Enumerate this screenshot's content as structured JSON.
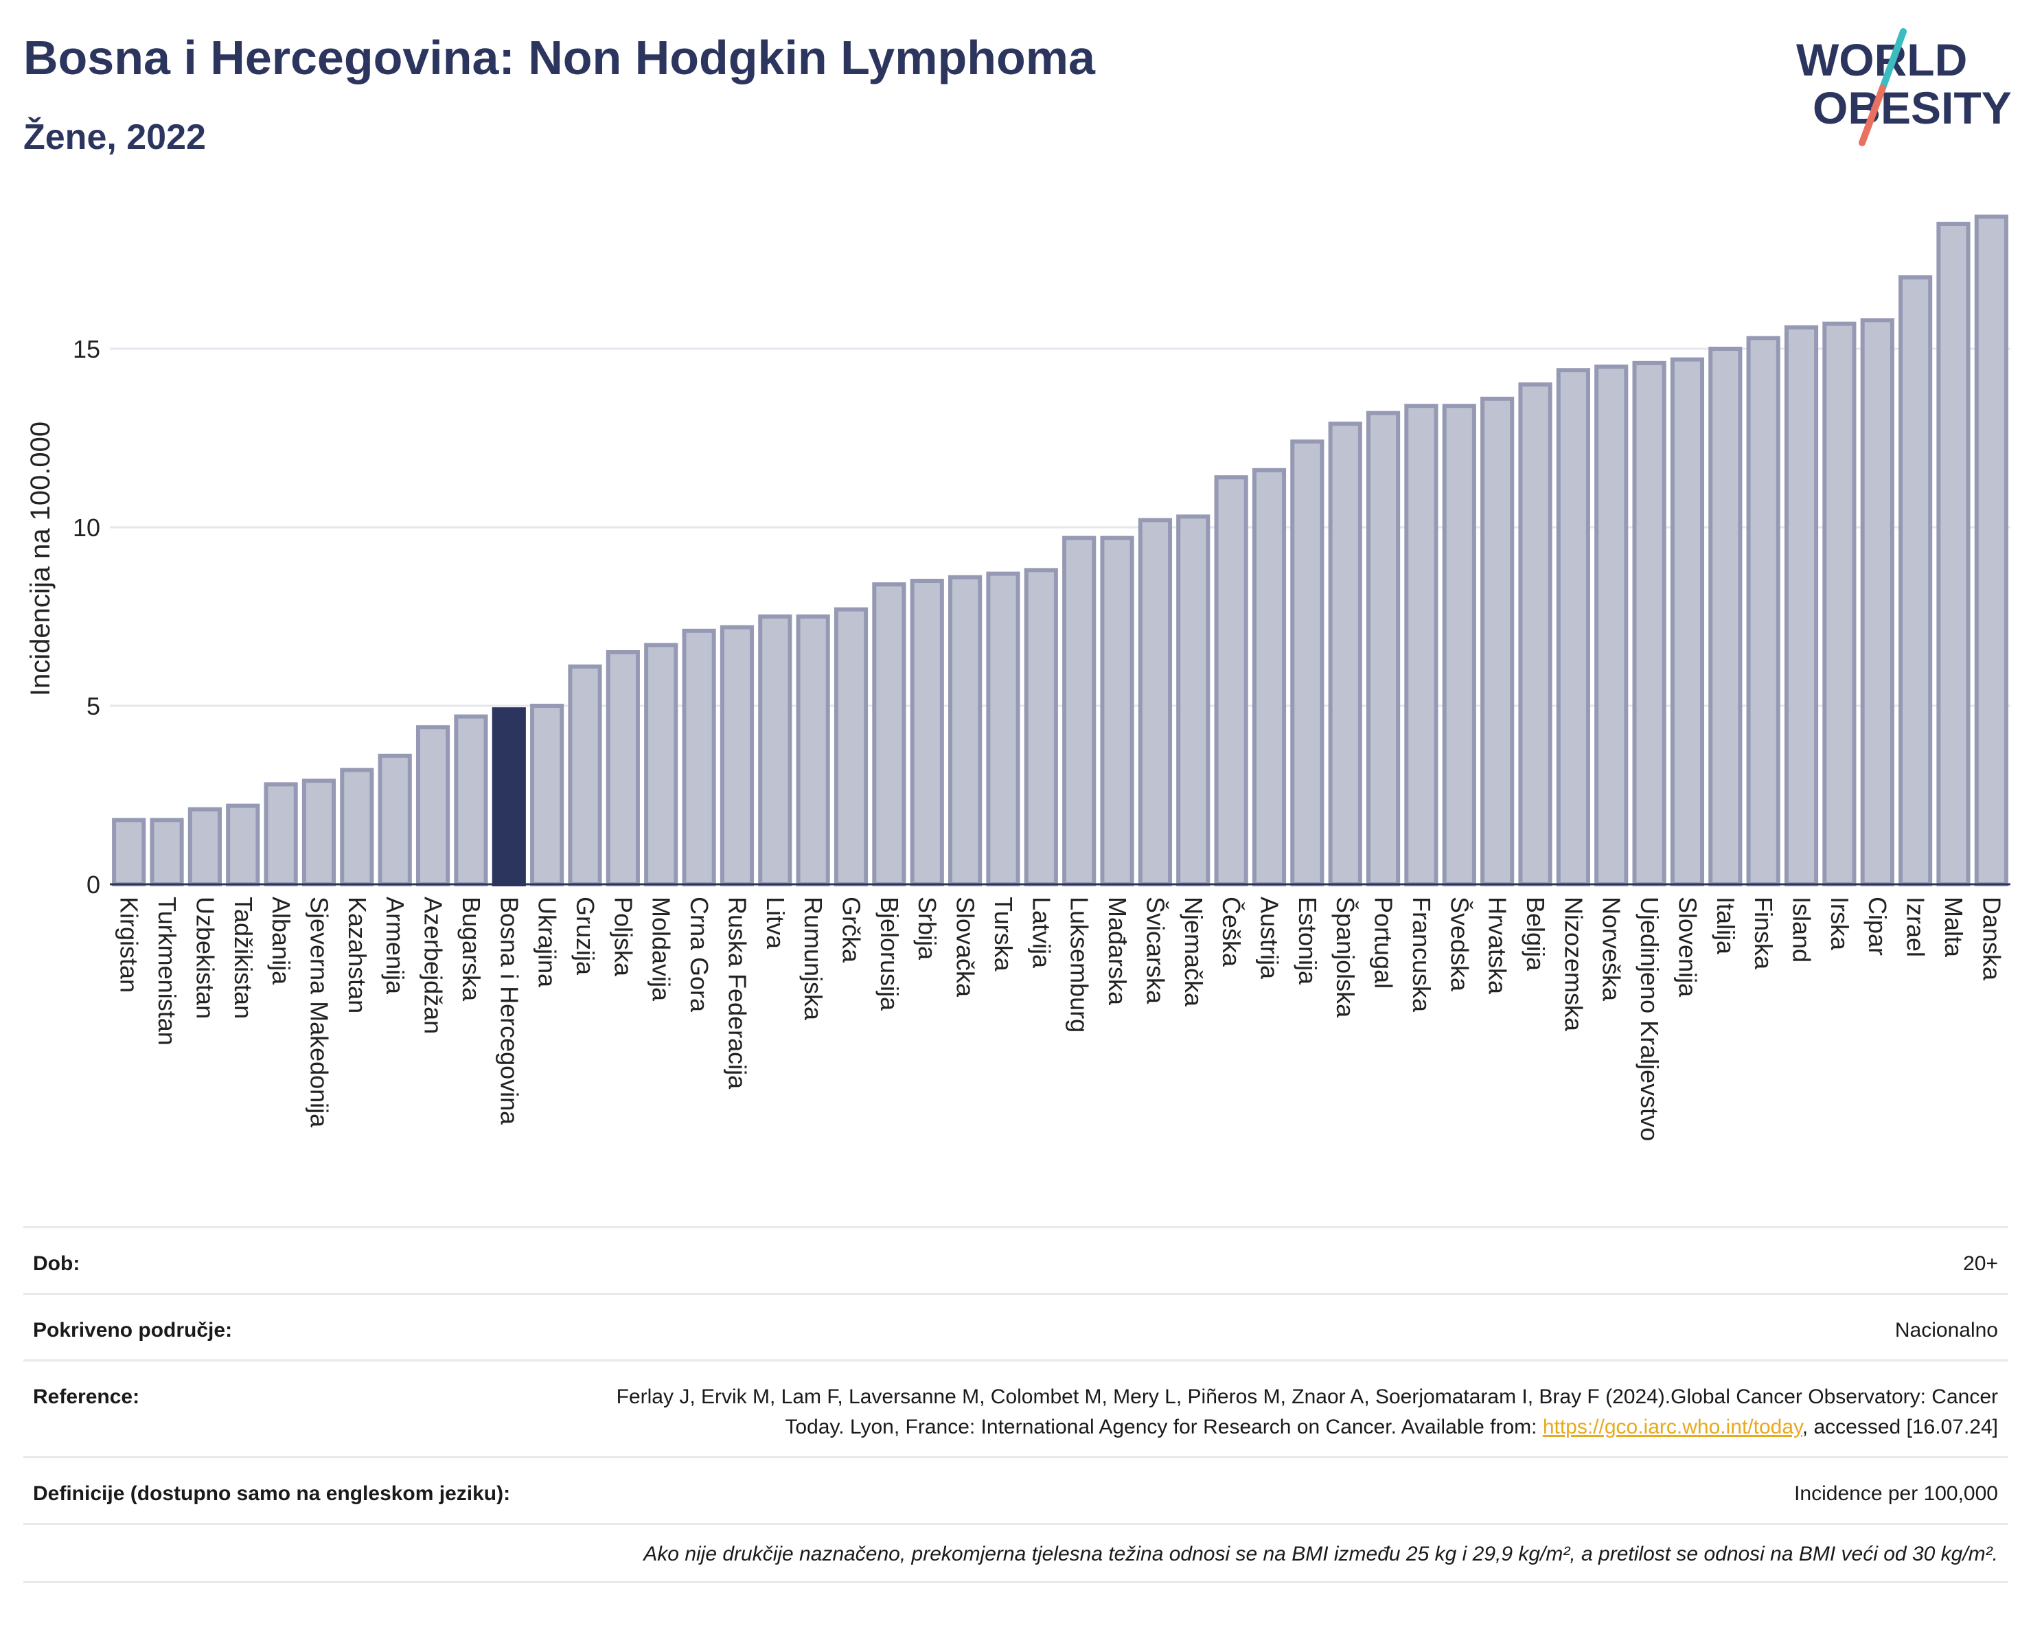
{
  "header": {
    "title": "Bosna i Hercegovina: Non Hodgkin Lymphoma",
    "subtitle": "Žene, 2022"
  },
  "logo": {
    "line1": "WORLD",
    "line2": "OBESITY",
    "accent_teal": "#3cbcc0",
    "accent_coral": "#e8715f",
    "color": "#2b355e"
  },
  "chart_data": {
    "type": "bar",
    "title": "Bosna i Hercegovina: Non Hodgkin Lymphoma",
    "subtitle": "Žene, 2022",
    "xlabel": "",
    "ylabel": "Incidencija na 100.000",
    "ylim": [
      0,
      19
    ],
    "yticks": [
      0,
      5,
      10,
      15
    ],
    "grid": true,
    "highlight": "Bosna i Hercegovina",
    "colors": {
      "bar": "#bfc3d1",
      "bar_edge": "#9599b3",
      "highlight": "#2b355e"
    },
    "categories": [
      "Kirgistan",
      "Turkmenistan",
      "Uzbekistan",
      "Tadžikistan",
      "Albanija",
      "Sjeverna Makedonija",
      "Kazahstan",
      "Armenija",
      "Azerbejdžan",
      "Bugarska",
      "Bosna i Hercegovina",
      "Ukrajina",
      "Gruzija",
      "Poljska",
      "Moldavija",
      "Crna Gora",
      "Ruska Federacija",
      "Litva",
      "Rumunjska",
      "Grčka",
      "Bjelorusija",
      "Srbija",
      "Slovačka",
      "Turska",
      "Latvija",
      "Luksemburg",
      "Mađarska",
      "Švicarska",
      "Njemačka",
      "Češka",
      "Austrija",
      "Estonija",
      "Španjolska",
      "Portugal",
      "Francuska",
      "Švedska",
      "Hrvatska",
      "Belgija",
      "Nizozemska",
      "Norveška",
      "Ujedinjeno Kraljevstvo",
      "Slovenija",
      "Italija",
      "Finska",
      "Island",
      "Irska",
      "Cipar",
      "Izrael",
      "Malta",
      "Danska"
    ],
    "values": [
      1.8,
      1.8,
      2.1,
      2.2,
      2.8,
      2.9,
      3.2,
      3.6,
      4.4,
      4.7,
      4.9,
      5.0,
      6.1,
      6.5,
      6.7,
      7.1,
      7.2,
      7.5,
      7.5,
      7.7,
      8.4,
      8.5,
      8.6,
      8.7,
      8.8,
      9.7,
      9.7,
      10.2,
      10.3,
      11.4,
      11.6,
      12.4,
      12.9,
      13.2,
      13.4,
      13.4,
      13.6,
      14.0,
      14.4,
      14.5,
      14.6,
      14.7,
      15.0,
      15.3,
      15.6,
      15.7,
      15.8,
      17.0,
      18.5,
      18.7
    ]
  },
  "meta": {
    "age_label": "Dob:",
    "age_value": "20+",
    "coverage_label": "Pokriveno područje:",
    "coverage_value": "Nacionalno",
    "reference_label": "Reference:",
    "reference_text_1": "Ferlay J, Ervik M, Lam F, Laversanne M, Colombet M, Mery L, Piñeros M, Znaor A, Soerjomataram I, Bray F (2024).Global Cancer Observatory: Cancer Today. Lyon, France: International Agency for Research on Cancer. Available from: ",
    "reference_link": "https://gco.iarc.who.int/today",
    "reference_text_2": ", accessed [16.07.24]",
    "definitions_label": "Definicije (dostupno samo na engleskom jeziku):",
    "definitions_value": "Incidence per 100,000",
    "note": "Ako nije drukčije naznačeno, prekomjerna tjelesna težina odnosi se na BMI između 25 kg i 29,9 kg/m², a pretilost se odnosi na BMI veći od 30 kg/m²."
  }
}
